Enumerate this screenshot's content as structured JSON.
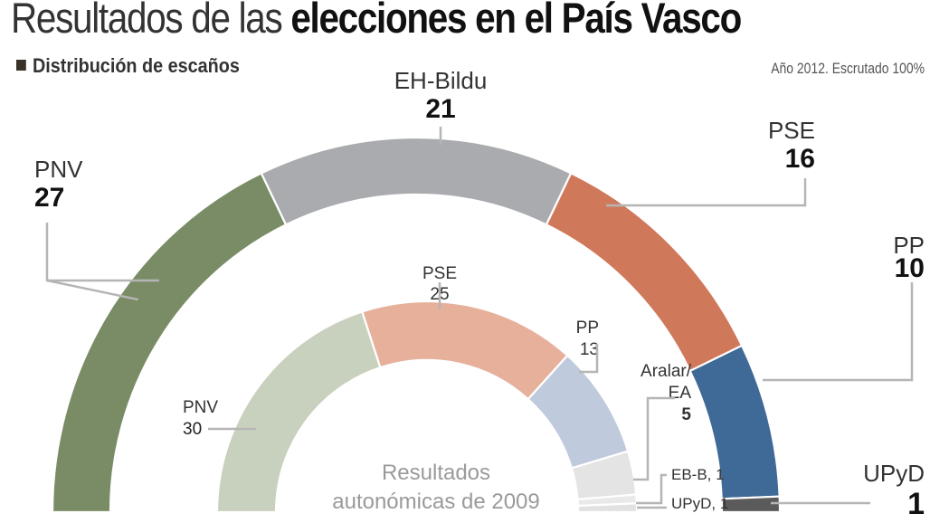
{
  "header": {
    "title_regular": "Resultados de las ",
    "title_bold": "elecciones en el País Vasco",
    "subtitle": "Distribución de escaños",
    "note": "Año 2012. Escrutado 100%"
  },
  "chart_data": [
    {
      "type": "pie",
      "subtype": "half-donut",
      "title": "Elecciones 2012 (escaños)",
      "total": 75,
      "categories": [
        "PNV",
        "EH-Bildu",
        "PSE",
        "PP",
        "UPyD"
      ],
      "values": [
        27,
        21,
        16,
        10,
        1
      ],
      "colors": [
        "#7a8c66",
        "#a9abae",
        "#d0785a",
        "#3f6996",
        "#5b5b5b"
      ],
      "labels": [
        {
          "name": "PNV",
          "value": "27"
        },
        {
          "name": "EH-Bildu",
          "value": "21"
        },
        {
          "name": "PSE",
          "value": "16"
        },
        {
          "name": "PP",
          "value": "10"
        },
        {
          "name": "UPyD",
          "value": "1"
        }
      ]
    },
    {
      "type": "pie",
      "subtype": "half-donut",
      "title": "Resultados autonómicas de 2009",
      "center_label": [
        "Resultados",
        "autonómicas de 2009"
      ],
      "total": 75,
      "categories": [
        "PNV",
        "PSE",
        "PP",
        "Aralar/EA",
        "EB-B",
        "UPyD"
      ],
      "values": [
        30,
        25,
        13,
        5,
        1,
        1
      ],
      "colors": [
        "#c8d0be",
        "#e6b09a",
        "#bfcadc",
        "#e4e4e4",
        "#e9e9e9",
        "#e2e2e2"
      ],
      "labels": [
        {
          "name": "PNV",
          "value": "30"
        },
        {
          "name": "PSE",
          "value": "25"
        },
        {
          "name": "PP",
          "value": "13"
        },
        {
          "name": "Aralar/",
          "name2": "EA",
          "value": "5"
        },
        {
          "name": "EB-B, 1"
        },
        {
          "name": "UPyD, 1"
        }
      ]
    }
  ]
}
